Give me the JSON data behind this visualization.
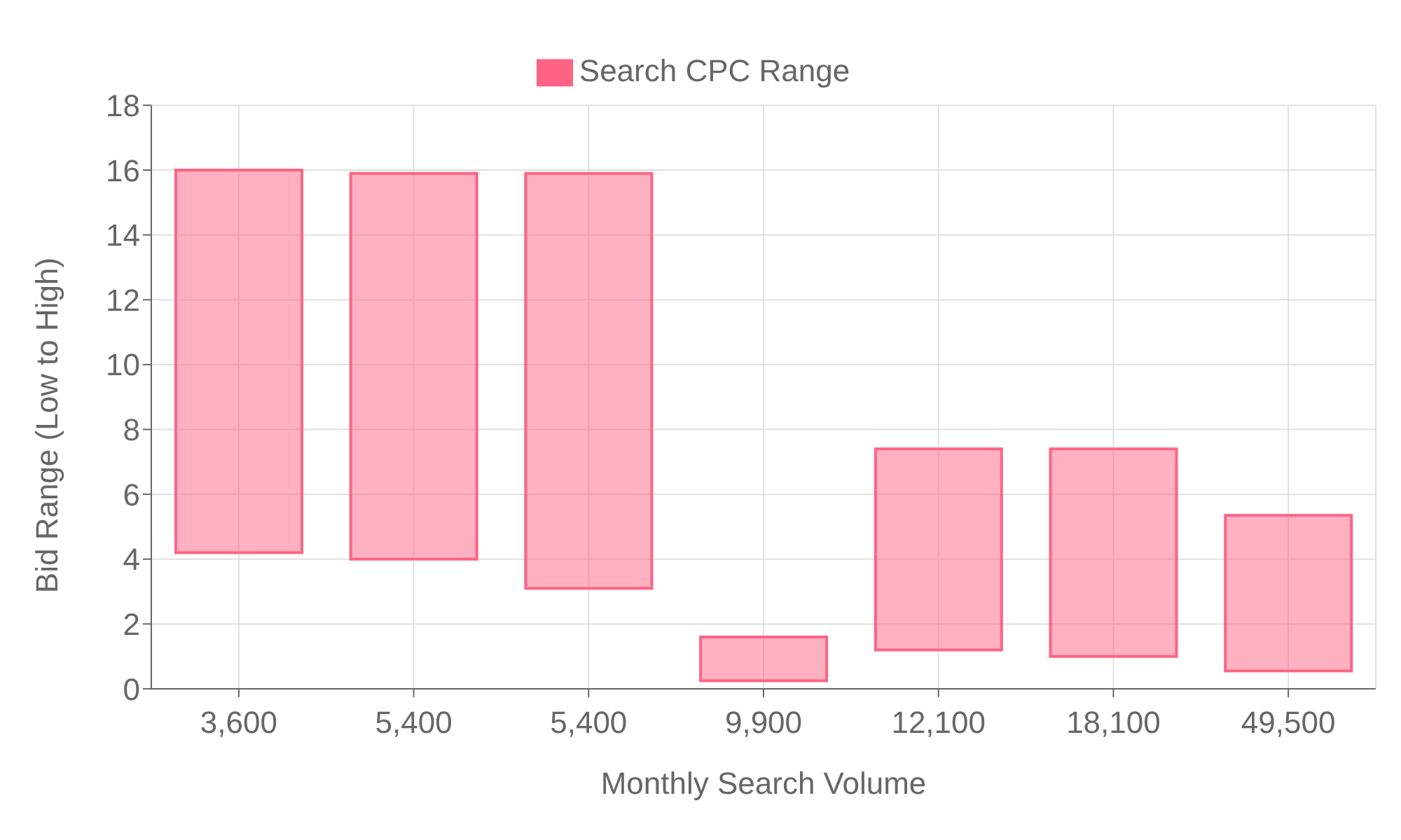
{
  "chart_data": {
    "type": "bar",
    "xlabel": "Monthly Search Volume",
    "ylabel": "Bid Range (Low to High)",
    "categories": [
      "3,600",
      "5,400",
      "5,400",
      "9,900",
      "12,100",
      "18,100",
      "49,500"
    ],
    "series": [
      {
        "name": "Search CPC Range",
        "color": "#ff6384",
        "values": [
          11.8,
          11.9,
          12.8,
          1.35,
          6.2,
          6.4,
          4.8
        ],
        "base": [
          4.2,
          4.0,
          3.1,
          0.25,
          1.2,
          1.0,
          0.55
        ]
      }
    ],
    "ylim": [
      0,
      18
    ],
    "yticks": [
      0,
      2,
      4,
      6,
      8,
      10,
      12,
      14,
      16,
      18
    ],
    "grid": true,
    "legend": "top"
  }
}
